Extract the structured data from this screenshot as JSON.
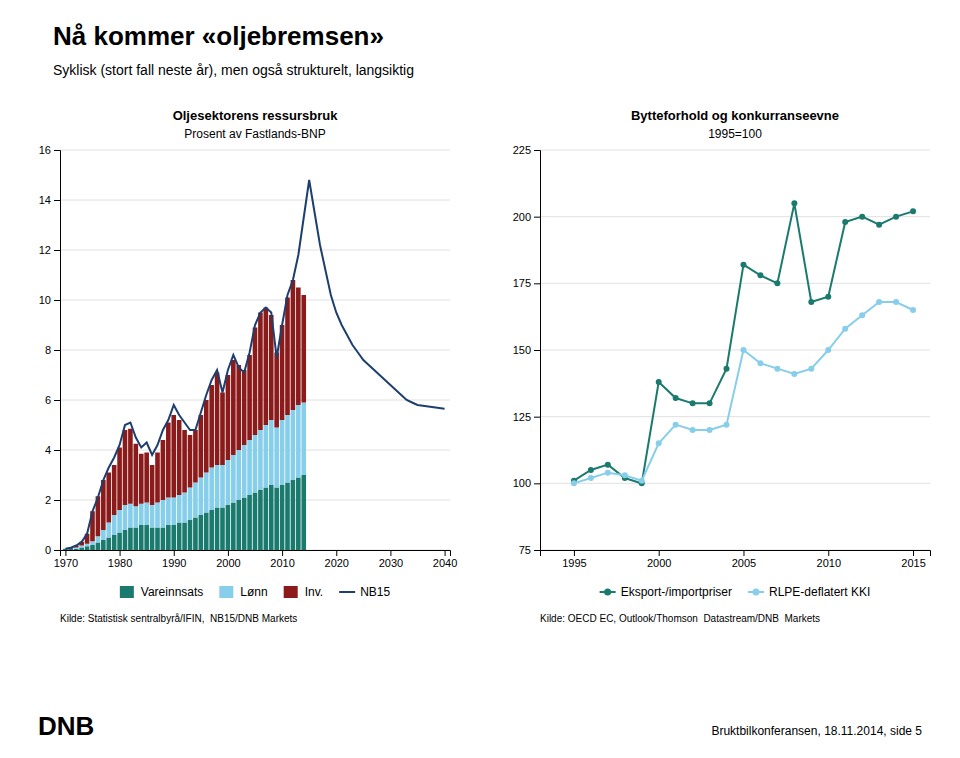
{
  "title": "Nå kommer «oljebremsen»",
  "subtitle": "Syklisk (stort fall neste år), men også strukturelt, langsiktig",
  "annotations": [
    "DNB",
    "Bruktbilkonferansen, 18.11.2014, side 5"
  ],
  "chart_data": [
    {
      "type": "bar",
      "title": "Oljesektorens ressursbruk",
      "subtitle": "Prosent av Fastlands-BNP",
      "stacked": true,
      "grid": true,
      "legend": "bottom",
      "annotations": [
        "Kilde: Statistisk sentralbyrå/IFIN,  NB15/DNB Markets"
      ],
      "x": [
        1970,
        1971,
        1972,
        1973,
        1974,
        1975,
        1976,
        1977,
        1978,
        1979,
        1980,
        1981,
        1982,
        1983,
        1984,
        1985,
        1986,
        1987,
        1988,
        1989,
        1990,
        1991,
        1992,
        1993,
        1994,
        1995,
        1996,
        1997,
        1998,
        1999,
        2000,
        2001,
        2002,
        2003,
        2004,
        2005,
        2006,
        2007,
        2008,
        2009,
        2010,
        2011,
        2012,
        2013,
        2014
      ],
      "xlim": [
        1969,
        2041
      ],
      "xticks": [
        1970,
        1980,
        1990,
        2000,
        2010,
        2020,
        2030,
        2040
      ],
      "ylim": [
        0,
        16
      ],
      "yticks": [
        0,
        2,
        4,
        6,
        8,
        10,
        12,
        14,
        16
      ],
      "series": [
        {
          "name": "Vareinnsats",
          "color": "#1a7a6e",
          "values": [
            0.05,
            0.05,
            0.05,
            0.1,
            0.15,
            0.2,
            0.3,
            0.4,
            0.5,
            0.6,
            0.7,
            0.8,
            0.9,
            0.9,
            1.0,
            1.0,
            0.9,
            0.9,
            0.9,
            1.0,
            1.0,
            1.1,
            1.1,
            1.2,
            1.3,
            1.4,
            1.5,
            1.6,
            1.7,
            1.7,
            1.8,
            1.9,
            2.0,
            2.1,
            2.2,
            2.3,
            2.4,
            2.5,
            2.6,
            2.5,
            2.6,
            2.7,
            2.8,
            2.9,
            3.0
          ]
        },
        {
          "name": "Lønn",
          "color": "#87ceeb",
          "values": [
            0.0,
            0.0,
            0.05,
            0.08,
            0.1,
            0.15,
            0.25,
            0.4,
            0.6,
            0.8,
            0.9,
            1.0,
            0.95,
            0.85,
            0.85,
            0.9,
            0.9,
            1.0,
            1.1,
            1.1,
            1.1,
            1.1,
            1.2,
            1.3,
            1.4,
            1.5,
            1.6,
            1.7,
            1.7,
            1.7,
            1.8,
            1.9,
            2.0,
            2.1,
            2.2,
            2.3,
            2.4,
            2.5,
            2.6,
            2.4,
            2.6,
            2.7,
            2.8,
            2.9,
            2.9
          ]
        },
        {
          "name": "Inv.",
          "color": "#8b1a1a",
          "values": [
            0.0,
            0.04,
            0.08,
            0.15,
            0.4,
            1.2,
            1.6,
            2.0,
            2.0,
            2.0,
            2.5,
            3.0,
            3.0,
            2.5,
            2.0,
            2.0,
            1.6,
            2.0,
            2.4,
            3.0,
            3.3,
            3.0,
            2.5,
            2.1,
            2.1,
            2.5,
            2.9,
            3.3,
            3.7,
            2.9,
            3.4,
            3.8,
            3.4,
            3.0,
            3.4,
            4.3,
            4.7,
            4.7,
            4.2,
            3.0,
            3.8,
            4.7,
            5.2,
            4.7,
            4.3
          ]
        },
        {
          "name": "NB15",
          "type": "line",
          "color": "#1c3f6e",
          "x": [
            1970,
            1971,
            1972,
            1973,
            1974,
            1975,
            1976,
            1977,
            1978,
            1979,
            1980,
            1981,
            1982,
            1983,
            1984,
            1985,
            1986,
            1987,
            1988,
            1989,
            1990,
            1991,
            1992,
            1993,
            1994,
            1995,
            1996,
            1997,
            1998,
            1999,
            2000,
            2001,
            2002,
            2003,
            2004,
            2005,
            2006,
            2007,
            2008,
            2009,
            2010,
            2011,
            2012,
            2013,
            2014,
            2015,
            2016,
            2017,
            2018,
            2019,
            2020,
            2021,
            2022,
            2023,
            2024,
            2025,
            2026,
            2027,
            2028,
            2029,
            2030,
            2031,
            2032,
            2033,
            2034,
            2035,
            2036,
            2037,
            2038,
            2039,
            2040
          ],
          "values": [
            0.05,
            0.09,
            0.18,
            0.33,
            0.65,
            1.55,
            2.1,
            2.8,
            3.3,
            3.7,
            4.2,
            5.0,
            5.1,
            4.5,
            4.1,
            4.3,
            3.8,
            4.2,
            4.8,
            5.2,
            5.8,
            5.4,
            5.1,
            4.8,
            4.8,
            5.5,
            6.2,
            6.8,
            7.2,
            6.3,
            7.2,
            7.8,
            7.3,
            7.1,
            7.9,
            9.0,
            9.5,
            9.7,
            9.5,
            7.7,
            9.0,
            10.2,
            10.8,
            11.8,
            13.3,
            14.8,
            13.5,
            12.2,
            11.2,
            10.2,
            9.5,
            9.0,
            8.6,
            8.2,
            7.9,
            7.6,
            7.4,
            7.2,
            7.0,
            6.8,
            6.6,
            6.4,
            6.2,
            6.0,
            5.9,
            5.8,
            5.77,
            5.74,
            5.71,
            5.68,
            5.65
          ]
        }
      ]
    },
    {
      "type": "line",
      "title": "Bytteforhold og konkurranseevne",
      "subtitle": "1995=100",
      "grid": true,
      "legend": "bottom",
      "annotations": [
        "Kilde: OECD EC, Outlook/Thomson  Datastream/DNB  Markets"
      ],
      "x": [
        1995,
        1996,
        1997,
        1998,
        1999,
        2000,
        2001,
        2002,
        2003,
        2004,
        2005,
        2006,
        2007,
        2008,
        2009,
        2010,
        2011,
        2012,
        2013,
        2014,
        2015
      ],
      "xlim": [
        1993,
        2016
      ],
      "xticks": [
        1995,
        2000,
        2005,
        2010,
        2015
      ],
      "ylim": [
        75,
        225
      ],
      "yticks": [
        75,
        100,
        125,
        150,
        175,
        200,
        225
      ],
      "series": [
        {
          "name": "Eksport-/importpriser",
          "color": "#1a7a6e",
          "marker": "circle",
          "values": [
            101,
            105,
            107,
            102,
            100,
            138,
            132,
            130,
            130,
            143,
            182,
            178,
            175,
            205,
            168,
            170,
            198,
            200,
            197,
            200,
            202
          ]
        },
        {
          "name": "RLPE-deflatert KKI",
          "color": "#87ceeb",
          "marker": "circle",
          "values": [
            100,
            102,
            104,
            103,
            101,
            115,
            122,
            120,
            120,
            122,
            150,
            145,
            143,
            141,
            143,
            150,
            158,
            163,
            168,
            168,
            165
          ]
        }
      ]
    }
  ]
}
